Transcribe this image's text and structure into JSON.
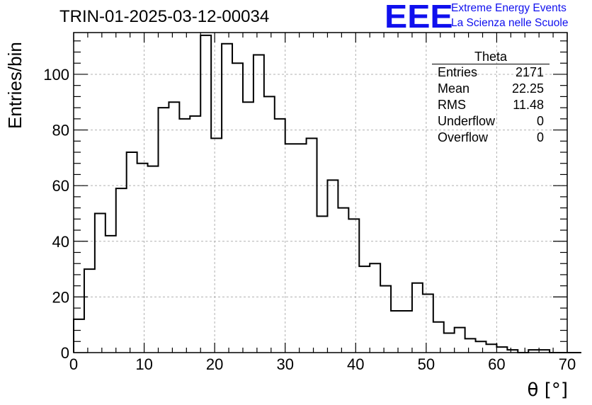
{
  "chart_data": {
    "type": "histogram",
    "title": "TRIN-01-2025-03-12-00034",
    "xlabel": "θ [°]",
    "ylabel": "Entries/bin",
    "xlim": [
      0,
      70
    ],
    "ylim": [
      0,
      115
    ],
    "bin_width": 1.5,
    "bin_start": 0,
    "x_ticks": [
      0,
      10,
      20,
      30,
      40,
      50,
      60,
      70
    ],
    "x_tick_labels": [
      "0",
      "10",
      "20",
      "30",
      "40",
      "50",
      "60",
      "70"
    ],
    "y_ticks": [
      0,
      20,
      40,
      60,
      80,
      100
    ],
    "y_tick_labels": [
      "0",
      "20",
      "40",
      "60",
      "80",
      "100"
    ],
    "grid": true,
    "values": [
      12,
      30,
      50,
      42,
      59,
      72,
      68,
      67,
      88,
      90,
      84,
      85,
      114,
      77,
      111,
      104,
      90,
      107,
      92,
      84,
      75,
      75,
      77,
      49,
      62,
      52,
      48,
      31,
      32,
      24,
      15,
      15,
      25,
      21,
      11,
      7,
      9,
      5,
      4,
      3,
      2,
      1,
      0,
      1,
      1,
      0,
      0,
      0
    ]
  },
  "stats_box": {
    "name": "Theta",
    "rows": [
      {
        "label": "Entries",
        "value": "2171"
      },
      {
        "label": "Mean",
        "value": "22.25"
      },
      {
        "label": "RMS",
        "value": "11.48"
      },
      {
        "label": "Underflow",
        "value": "0"
      },
      {
        "label": "Overflow",
        "value": "0"
      }
    ]
  },
  "logo": {
    "mark": "EEE",
    "line1": "Extreme Energy Events",
    "line2": "La Scienza nelle Scuole",
    "color": "#1010ee"
  }
}
